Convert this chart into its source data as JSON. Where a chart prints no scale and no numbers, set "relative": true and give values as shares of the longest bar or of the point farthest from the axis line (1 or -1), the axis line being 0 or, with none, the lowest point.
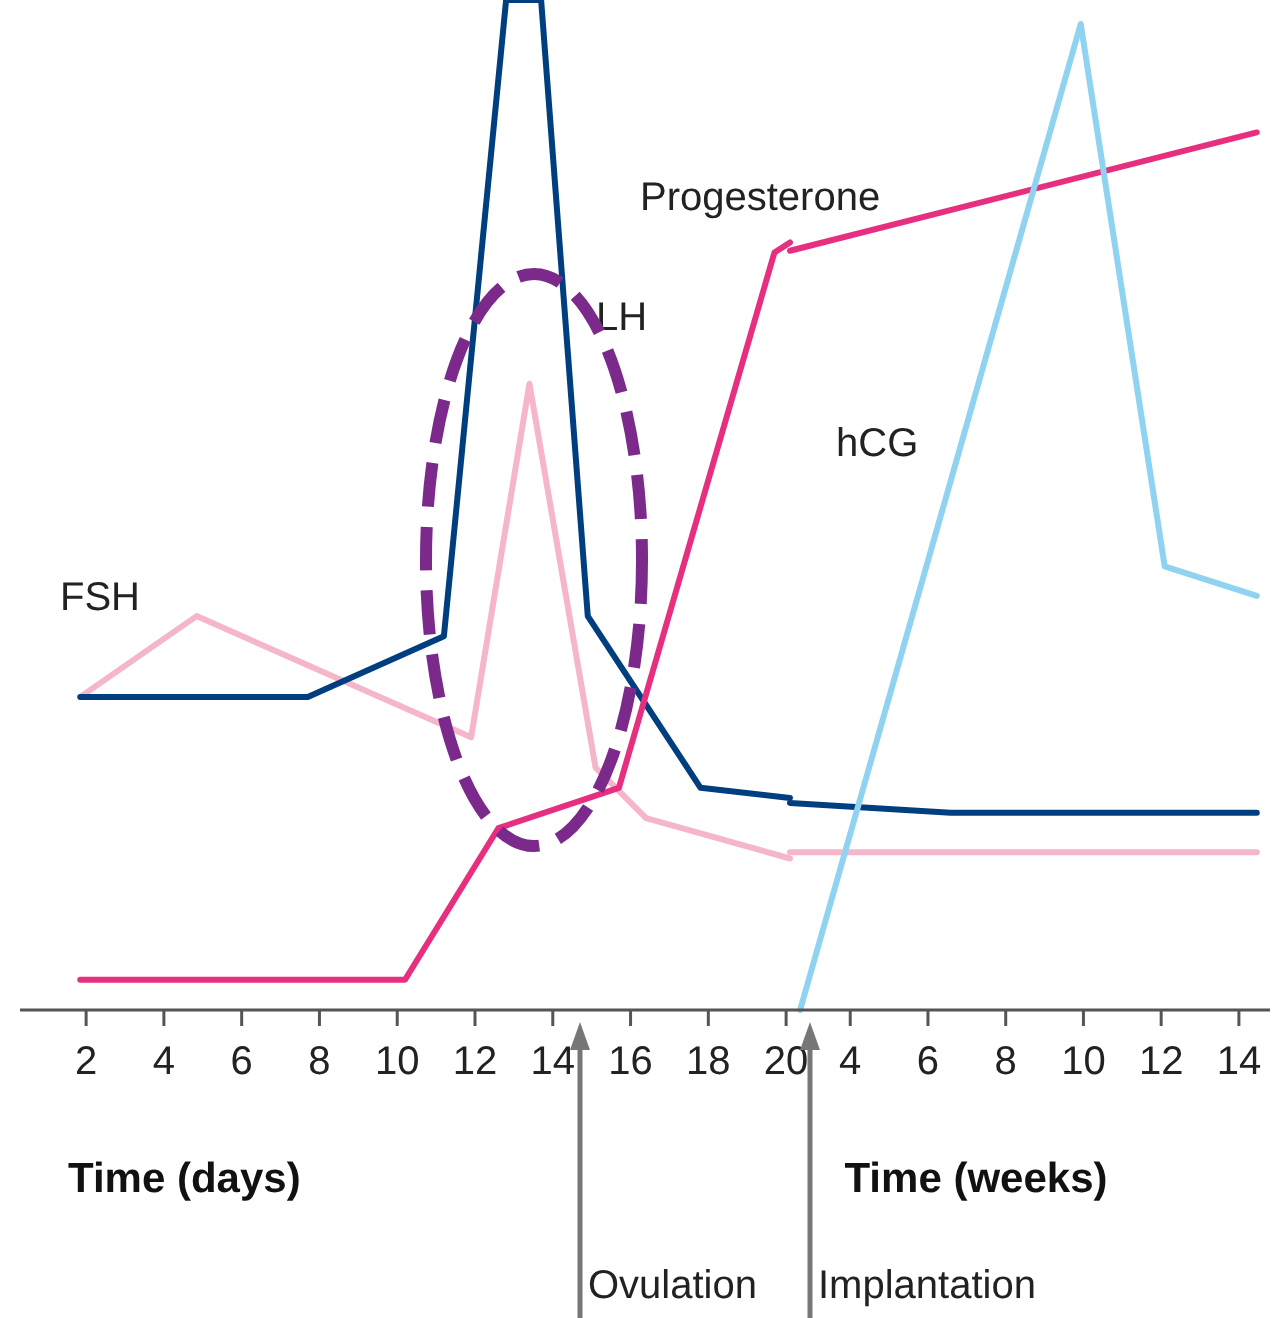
{
  "chart_data": [
    {
      "type": "line",
      "relative": true,
      "xlabel": "Time (days)",
      "xlim": [
        0.3,
        20.1
      ],
      "xticks": [
        2,
        4,
        6,
        8,
        10,
        12,
        14,
        16,
        18,
        20
      ],
      "marker": "none",
      "line_style": "solid",
      "series": [
        {
          "name": "FSH",
          "color": "#f4b6c8",
          "x": [
            1.85,
            4.84,
            11.9,
            13.4,
            15.1,
            16.4,
            20.1
          ],
          "values": [
            0.31,
            0.39,
            0.27,
            0.62,
            0.24,
            0.19,
            0.15
          ]
        },
        {
          "name": "LH",
          "color": "#003f7f",
          "x": [
            1.85,
            7.7,
            11.2,
            12.8,
            13.7,
            14.9,
            17.8,
            20.1
          ],
          "values": [
            0.31,
            0.31,
            0.37,
            1,
            1,
            0.39,
            0.22,
            0.21
          ]
        },
        {
          "name": "Progesterone",
          "color": "#e6307f",
          "x": [
            1.85,
            10.2,
            12.6,
            15.7,
            19.7,
            20.1
          ],
          "values": [
            0.03,
            0.03,
            0.18,
            0.22,
            0.75,
            0.76
          ]
        }
      ],
      "annotations": [
        "Ovulation"
      ]
    },
    {
      "type": "line",
      "relative": true,
      "xlabel": "Time (weeks)",
      "xlim": [
        2.45,
        14.8
      ],
      "xticks": [
        4,
        6,
        8,
        10,
        12,
        14
      ],
      "marker": "none",
      "line_style": "solid",
      "series": [
        {
          "color": "#f4b6c8",
          "x": [
            2.45,
            14.46
          ],
          "values": [
            0.16,
            0.16
          ]
        },
        {
          "color": "#003f7f",
          "x": [
            2.45,
            6.58,
            14.46
          ],
          "values": [
            0.21,
            0.2,
            0.2
          ]
        },
        {
          "color": "#e6307f",
          "x": [
            2.45,
            14.46
          ],
          "values": [
            0.77,
            0.89
          ]
        },
        {
          "name": "hCG",
          "color": "#8fd3f0",
          "x": [
            2.71,
            9.93,
            12.09,
            14.46
          ],
          "values": [
            0,
            1,
            0.45,
            0.42
          ]
        }
      ],
      "annotations": [
        "Implantation"
      ]
    }
  ]
}
